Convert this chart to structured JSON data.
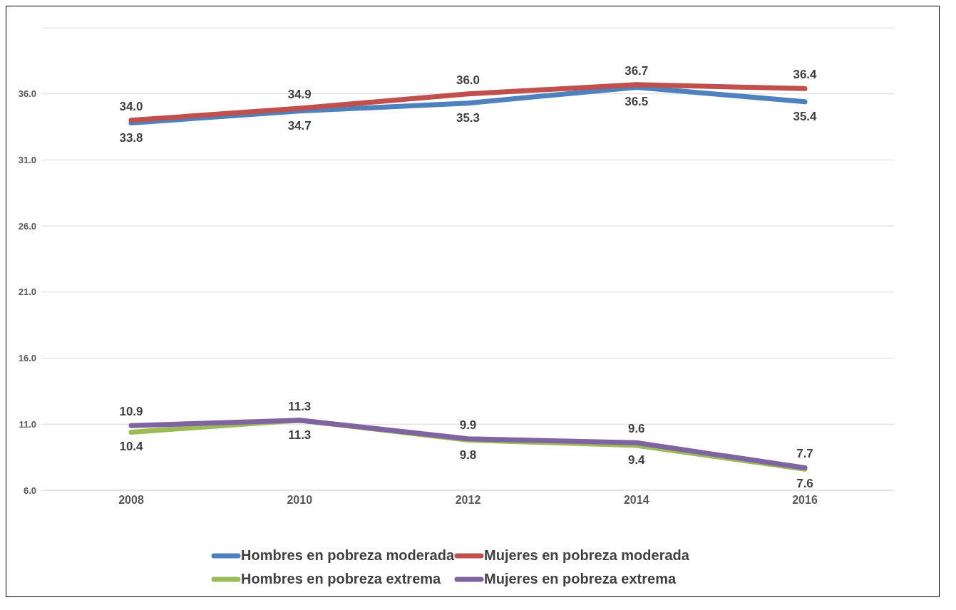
{
  "chart_data": {
    "type": "line",
    "categories": [
      "2008",
      "2010",
      "2012",
      "2014",
      "2016"
    ],
    "series": [
      {
        "name": "Hombres en pobreza moderada",
        "color": "#4f81bd",
        "values": [
          33.8,
          34.7,
          35.3,
          36.5,
          35.4
        ],
        "value_labels": [
          "33.8",
          "34.7",
          "35.3",
          "36.5",
          "35.4"
        ]
      },
      {
        "name": "Mujeres en pobreza moderada",
        "color": "#c0504d",
        "values": [
          34.0,
          34.9,
          36.0,
          36.7,
          36.4
        ],
        "value_labels": [
          "34.0",
          "34.9",
          "36.0",
          "36.7",
          "36.4"
        ]
      },
      {
        "name": "Hombres en pobreza extrema",
        "color": "#9bbb59",
        "values": [
          10.4,
          11.3,
          9.8,
          9.4,
          7.6
        ],
        "value_labels": [
          "10.4",
          "11.3",
          "9.8",
          "9.4",
          "7.6"
        ]
      },
      {
        "name": "Mujeres en pobreza extrema",
        "color": "#8064a2",
        "values": [
          10.9,
          11.3,
          9.9,
          9.6,
          7.7
        ],
        "value_labels": [
          "10.9",
          "11.3",
          "9.9",
          "9.6",
          "7.7"
        ]
      }
    ],
    "ylim": [
      6,
      41
    ],
    "yticks": [
      {
        "value": 6,
        "label": "6.0"
      },
      {
        "value": 11,
        "label": "11.0"
      },
      {
        "value": 16,
        "label": "16.0"
      },
      {
        "value": 21,
        "label": "21.0"
      },
      {
        "value": 26,
        "label": "26.0"
      },
      {
        "value": 31,
        "label": "31.0"
      },
      {
        "value": 36,
        "label": "36.0"
      }
    ],
    "grid": "y",
    "legend": "bottom",
    "marker": "none",
    "line_style": "solid"
  }
}
